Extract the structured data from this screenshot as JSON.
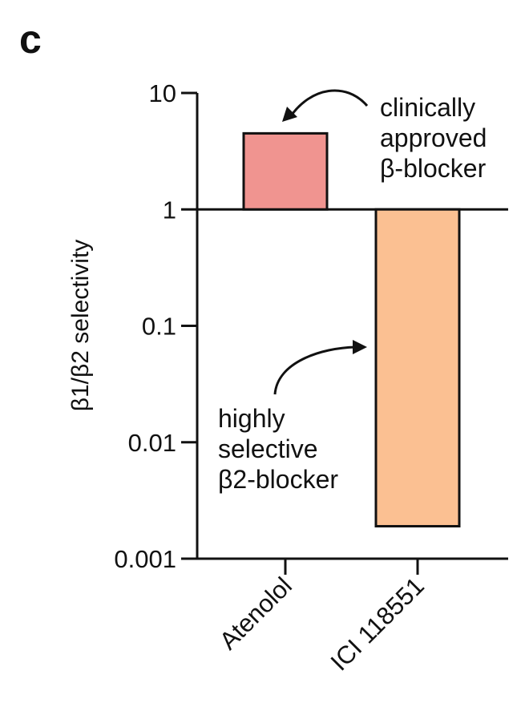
{
  "panel_label": "c",
  "chart_data": {
    "type": "bar",
    "ylabel": "β1/β2 selectivity",
    "yscale": "log",
    "ylim": [
      0.001,
      10
    ],
    "baseline": 1,
    "yticks": [
      10,
      1,
      0.1,
      0.01,
      0.001
    ],
    "ytick_labels": [
      "10",
      "1",
      "0.1",
      "0.01",
      "0.001"
    ],
    "categories": [
      "Atenolol",
      "ICI 118551"
    ],
    "values": [
      4.5,
      0.0019
    ],
    "colors": [
      "#F09490",
      "#FBC092"
    ],
    "annotations": [
      {
        "lines": [
          "clinically",
          "approved",
          "β-blocker"
        ],
        "points_to": "Atenolol"
      },
      {
        "lines": [
          "highly",
          "selective",
          "β2-blocker"
        ],
        "points_to": "ICI 118551"
      }
    ]
  }
}
